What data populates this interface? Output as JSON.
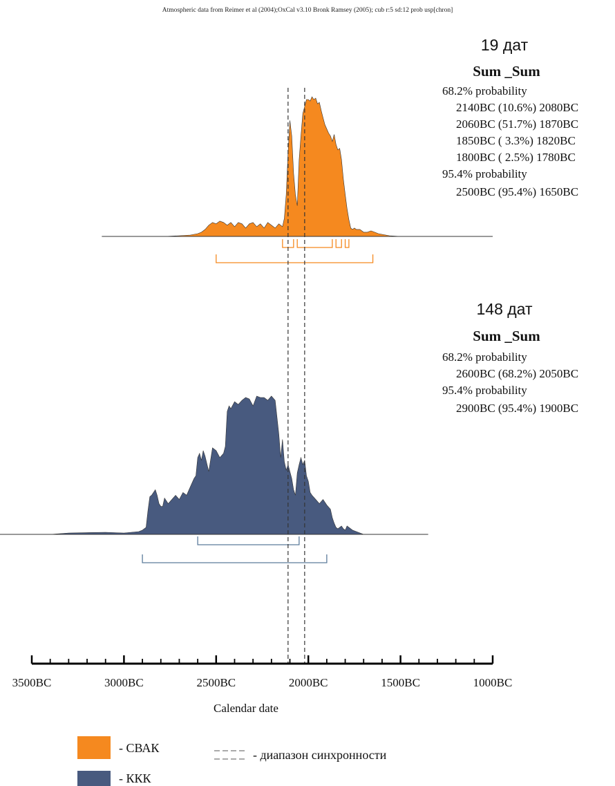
{
  "header": "Atmospheric data from Reimer et al (2004);OxCal v3.10 Bronk Ramsey (2005); cub r:5 sd:12 prob usp[chron]",
  "colors": {
    "svak": "#f5891f",
    "kkk": "#485a7f",
    "svak_bracket": "#f5891f",
    "kkk_bracket": "#5a7a9a",
    "sync": "#333333",
    "axis": "#000000"
  },
  "chart_data": {
    "type": "area",
    "xlabel": "Calendar date",
    "x_ticks": [
      "3500BC",
      "3000BC",
      "2500BC",
      "2000BC",
      "1500BC",
      "1000BC"
    ],
    "xlim": [
      3500,
      1000
    ],
    "x_unit": "years BC",
    "sync_range": [
      2110,
      2020
    ],
    "series": [
      {
        "name": "СВАК",
        "count_label": "19 дат",
        "sum_label": "Sum _Sum",
        "prob68_label": "68.2% probability",
        "prob68": [
          "2140BC (10.6%) 2080BC",
          "2060BC (51.7%) 1870BC",
          "1850BC ( 3.3%) 1820BC",
          "1800BC ( 2.5%) 1780BC"
        ],
        "prob95_label": "95.4% probability",
        "prob95": [
          "2500BC (95.4%) 1650BC"
        ],
        "ranges68": [
          [
            2140,
            2080
          ],
          [
            2060,
            1870
          ],
          [
            1850,
            1820
          ],
          [
            1800,
            1780
          ]
        ],
        "ranges95": [
          [
            2500,
            1650
          ]
        ],
        "x": [
          3120,
          2780,
          2700,
          2640,
          2600,
          2580,
          2560,
          2540,
          2520,
          2500,
          2480,
          2460,
          2440,
          2420,
          2400,
          2380,
          2360,
          2340,
          2320,
          2300,
          2280,
          2260,
          2240,
          2220,
          2200,
          2180,
          2160,
          2140,
          2130,
          2120,
          2110,
          2100,
          2090,
          2080,
          2070,
          2060,
          2050,
          2040,
          2030,
          2020,
          2010,
          2000,
          1990,
          1980,
          1970,
          1960,
          1950,
          1940,
          1930,
          1920,
          1910,
          1900,
          1890,
          1880,
          1870,
          1860,
          1850,
          1840,
          1830,
          1820,
          1810,
          1800,
          1790,
          1780,
          1770,
          1760,
          1750,
          1740,
          1720,
          1700,
          1680,
          1660,
          1640,
          1620,
          1600,
          1580,
          1560,
          1500,
          1000
        ],
        "y": [
          0,
          0,
          0.005,
          0.01,
          0.02,
          0.03,
          0.05,
          0.08,
          0.1,
          0.09,
          0.11,
          0.1,
          0.08,
          0.1,
          0.07,
          0.1,
          0.09,
          0.06,
          0.09,
          0.1,
          0.07,
          0.09,
          0.06,
          0.1,
          0.08,
          0.06,
          0.09,
          0.07,
          0.13,
          0.3,
          0.6,
          0.83,
          0.72,
          0.45,
          0.3,
          0.22,
          0.55,
          0.72,
          0.88,
          0.93,
          0.98,
          0.98,
          0.97,
          1.0,
          0.98,
          0.99,
          0.95,
          0.96,
          0.9,
          0.85,
          0.8,
          0.77,
          0.74,
          0.72,
          0.68,
          0.73,
          0.66,
          0.62,
          0.63,
          0.55,
          0.41,
          0.3,
          0.2,
          0.12,
          0.06,
          0.05,
          0.06,
          0.05,
          0.05,
          0.03,
          0.03,
          0.04,
          0.03,
          0.02,
          0.015,
          0.01,
          0.005,
          0,
          0
        ]
      },
      {
        "name": "ККК",
        "count_label": "148 дат",
        "sum_label": "Sum _Sum",
        "prob68_label": "68.2% probability",
        "prob68": [
          "2600BC (68.2%) 2050BC"
        ],
        "prob95_label": "95.4% probability",
        "prob95": [
          "2900BC (95.4%) 1900BC"
        ],
        "ranges68": [
          [
            2600,
            2050
          ]
        ],
        "ranges95": [
          [
            2900,
            1900
          ]
        ],
        "x": [
          3970,
          3400,
          3300,
          3100,
          3000,
          2920,
          2900,
          2880,
          2870,
          2860,
          2850,
          2840,
          2830,
          2820,
          2810,
          2800,
          2790,
          2780,
          2760,
          2740,
          2720,
          2700,
          2680,
          2660,
          2640,
          2620,
          2610,
          2600,
          2590,
          2580,
          2570,
          2560,
          2540,
          2520,
          2500,
          2480,
          2460,
          2450,
          2440,
          2430,
          2420,
          2400,
          2380,
          2360,
          2340,
          2320,
          2300,
          2280,
          2260,
          2240,
          2220,
          2200,
          2180,
          2160,
          2150,
          2140,
          2130,
          2120,
          2110,
          2100,
          2090,
          2080,
          2070,
          2060,
          2050,
          2040,
          2030,
          2020,
          2010,
          2000,
          1990,
          1980,
          1960,
          1940,
          1920,
          1900,
          1880,
          1870,
          1860,
          1850,
          1840,
          1830,
          1820,
          1810,
          1800,
          1790,
          1780,
          1760,
          1700,
          1350
        ],
        "y": [
          0,
          0,
          0.01,
          0.015,
          0.01,
          0.02,
          0.03,
          0.05,
          0.17,
          0.27,
          0.28,
          0.3,
          0.32,
          0.28,
          0.22,
          0.2,
          0.2,
          0.26,
          0.22,
          0.25,
          0.28,
          0.25,
          0.3,
          0.28,
          0.34,
          0.4,
          0.42,
          0.55,
          0.58,
          0.53,
          0.6,
          0.56,
          0.45,
          0.62,
          0.6,
          0.55,
          0.58,
          0.63,
          0.88,
          0.92,
          0.9,
          0.95,
          0.93,
          0.96,
          0.98,
          0.97,
          0.92,
          0.99,
          0.98,
          0.98,
          0.96,
          0.99,
          0.96,
          0.72,
          0.55,
          0.68,
          0.52,
          0.46,
          0.5,
          0.45,
          0.4,
          0.32,
          0.28,
          0.44,
          0.5,
          0.55,
          0.5,
          0.53,
          0.42,
          0.38,
          0.3,
          0.28,
          0.25,
          0.22,
          0.25,
          0.21,
          0.18,
          0.12,
          0.08,
          0.05,
          0.04,
          0.05,
          0.06,
          0.04,
          0.03,
          0.06,
          0.05,
          0.03,
          0,
          0
        ]
      }
    ]
  },
  "legend": {
    "svak_label": "- СВАК",
    "kkk_label": "- ККК",
    "sync_label": "- диапазон синхронности"
  }
}
